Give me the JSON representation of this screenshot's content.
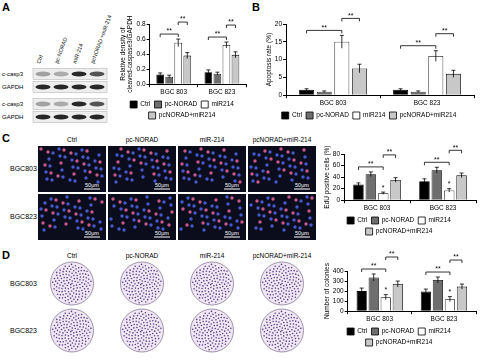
{
  "panels": [
    {
      "letter": "A",
      "blot": {
        "lanes": [
          "Ctrl",
          "pc-NORAD",
          "miR-214",
          "pcNORAD +miR-214"
        ],
        "rows": [
          "c-casp3",
          "GAPDH",
          "c-casp3",
          "GAPDH"
        ]
      }
    },
    {
      "letter": "B"
    },
    {
      "letter": "C",
      "images": {
        "columns": [
          "Ctrl",
          "pc-NORAD",
          "miR-214",
          "pcNORAD+miR-214"
        ],
        "rows": [
          "BGC803",
          "BGC823"
        ],
        "scale_bar": "50μm"
      }
    },
    {
      "letter": "D",
      "images": {
        "columns": [
          "Ctrl",
          "pc-NORAD",
          "miR-214",
          "pcNORAD+miR-214"
        ],
        "rows": [
          "BGC803",
          "BGC823"
        ]
      }
    }
  ],
  "chart_data": [
    {
      "type": "bar",
      "y_label": "Relative density of cleaved-caspase3/GAPDH",
      "categories": [
        "BGC 803",
        "BGC 823"
      ],
      "series": [
        {
          "name": "Ctrl",
          "color": "#000000",
          "values": [
            0.13,
            0.16
          ],
          "errors": [
            0.02,
            0.03
          ]
        },
        {
          "name": "pc-NORAD",
          "color": "#6e6e6e",
          "values": [
            0.1,
            0.14
          ],
          "errors": [
            0.02,
            0.02
          ]
        },
        {
          "name": "miR214",
          "color": "#ffffff",
          "values": [
            0.55,
            0.52
          ],
          "errors": [
            0.05,
            0.04
          ]
        },
        {
          "name": "pcNORAD+miR214",
          "color": "#c8c8c8",
          "values": [
            0.38,
            0.39
          ],
          "errors": [
            0.04,
            0.04
          ]
        }
      ],
      "ylim": [
        0,
        0.8
      ],
      "yticks": [
        {
          "value": 0,
          "label": "0.0"
        },
        {
          "value": 0.2,
          "label": "0.2"
        },
        {
          "value": 0.4,
          "label": "0.4"
        },
        {
          "value": 0.6,
          "label": "0.6"
        },
        {
          "value": 0.8,
          "label": "0.8"
        }
      ],
      "grid": false,
      "legend": "bottom",
      "annotations": [
        {
          "text": "**",
          "category": "BGC 803",
          "between": [
            "Ctrl",
            "miR214"
          ]
        },
        {
          "text": "**",
          "category": "BGC 803",
          "between": [
            "miR214",
            "pcNORAD+miR214"
          ]
        },
        {
          "text": "**",
          "category": "BGC 823",
          "between": [
            "Ctrl",
            "miR214"
          ]
        },
        {
          "text": "**",
          "category": "BGC 823",
          "between": [
            "miR214",
            "pcNORAD+miR214"
          ]
        }
      ]
    },
    {
      "type": "bar",
      "y_label": "Apoptosis rate (%)",
      "categories": [
        "BGC 803",
        "BGC 823"
      ],
      "series": [
        {
          "name": "Ctrl",
          "color": "#000000",
          "values": [
            1.5,
            1.5
          ],
          "errors": [
            0.3,
            0.3
          ]
        },
        {
          "name": "pc-NORAD",
          "color": "#6e6e6e",
          "values": [
            1.0,
            1.0
          ],
          "errors": [
            0.2,
            0.2
          ]
        },
        {
          "name": "miR214",
          "color": "#ffffff",
          "values": [
            15,
            11
          ],
          "errors": [
            1.8,
            1.5
          ]
        },
        {
          "name": "pcNORAD+miR214",
          "color": "#c8c8c8",
          "values": [
            7.5,
            6
          ],
          "errors": [
            1.2,
            1.0
          ]
        }
      ],
      "ylim": [
        0,
        20
      ],
      "yticks": [
        0,
        5,
        10,
        15,
        20
      ],
      "grid": false,
      "legend": "bottom",
      "annotations": [
        {
          "text": "**",
          "category": "BGC 803",
          "between": [
            "Ctrl",
            "miR214"
          ]
        },
        {
          "text": "**",
          "category": "BGC 803",
          "between": [
            "miR214",
            "pcNORAD+miR214"
          ]
        },
        {
          "text": "**",
          "category": "BGC 823",
          "between": [
            "Ctrl",
            "miR214"
          ]
        },
        {
          "text": "**",
          "category": "BGC 823",
          "between": [
            "miR214",
            "pcNORAD+miR214"
          ]
        }
      ]
    },
    {
      "type": "bar",
      "y_label": "EdU positive cells (%)",
      "categories": [
        "BGC 803",
        "BGC 823"
      ],
      "series": [
        {
          "name": "Ctrl",
          "color": "#000000",
          "values": [
            27,
            33
          ],
          "errors": [
            3,
            4
          ]
        },
        {
          "name": "pc-NORAD",
          "color": "#6e6e6e",
          "values": [
            45,
            52
          ],
          "errors": [
            4,
            5
          ]
        },
        {
          "name": "miR214",
          "color": "#ffffff",
          "values": [
            12,
            17
          ],
          "errors": [
            2,
            3
          ]
        },
        {
          "name": "pcNORAD+miR214",
          "color": "#c8c8c8",
          "values": [
            35,
            43
          ],
          "errors": [
            4,
            4
          ]
        }
      ],
      "ylim": [
        0,
        80
      ],
      "yticks": [
        0,
        20,
        40,
        60,
        80
      ],
      "grid": false,
      "legend": "bottom",
      "annotations": [
        {
          "text": "*",
          "category": "BGC 803",
          "series": "miR214"
        },
        {
          "text": "*",
          "category": "BGC 823",
          "series": "miR214"
        },
        {
          "text": "**",
          "category": "BGC 803",
          "between": [
            "Ctrl",
            "miR214"
          ]
        },
        {
          "text": "**",
          "category": "BGC 803",
          "between": [
            "miR214",
            "pcNORAD+miR214"
          ]
        },
        {
          "text": "**",
          "category": "BGC 823",
          "between": [
            "Ctrl",
            "miR214"
          ]
        },
        {
          "text": "**",
          "category": "BGC 823",
          "between": [
            "miR214",
            "pcNORAD+miR214"
          ]
        }
      ]
    },
    {
      "type": "bar",
      "y_label": "Number of colonies",
      "categories": [
        "BGC 803",
        "BGC 823"
      ],
      "series": [
        {
          "name": "Ctrl",
          "color": "#000000",
          "values": [
            200,
            195
          ],
          "errors": [
            30,
            25
          ]
        },
        {
          "name": "pc-NORAD",
          "color": "#6e6e6e",
          "values": [
            335,
            310
          ],
          "errors": [
            35,
            30
          ]
        },
        {
          "name": "miR214",
          "color": "#ffffff",
          "values": [
            140,
            120
          ],
          "errors": [
            25,
            25
          ]
        },
        {
          "name": "pcNORAD+miR214",
          "color": "#c8c8c8",
          "values": [
            270,
            245
          ],
          "errors": [
            30,
            25
          ]
        }
      ],
      "ylim": [
        0,
        400
      ],
      "yticks": [
        0,
        100,
        200,
        300,
        400
      ],
      "grid": false,
      "legend": "bottom",
      "annotations": [
        {
          "text": "*",
          "category": "BGC 803",
          "series": "miR214"
        },
        {
          "text": "*",
          "category": "BGC 823",
          "series": "miR214"
        },
        {
          "text": "**",
          "category": "BGC 803",
          "between": [
            "Ctrl",
            "miR214"
          ]
        },
        {
          "text": "**",
          "category": "BGC 803",
          "between": [
            "miR214",
            "pcNORAD+miR214"
          ]
        },
        {
          "text": "**",
          "category": "BGC 823",
          "between": [
            "Ctrl",
            "miR214"
          ]
        },
        {
          "text": "**",
          "category": "BGC 823",
          "between": [
            "miR214",
            "pcNORAD+miR214"
          ]
        }
      ]
    }
  ]
}
